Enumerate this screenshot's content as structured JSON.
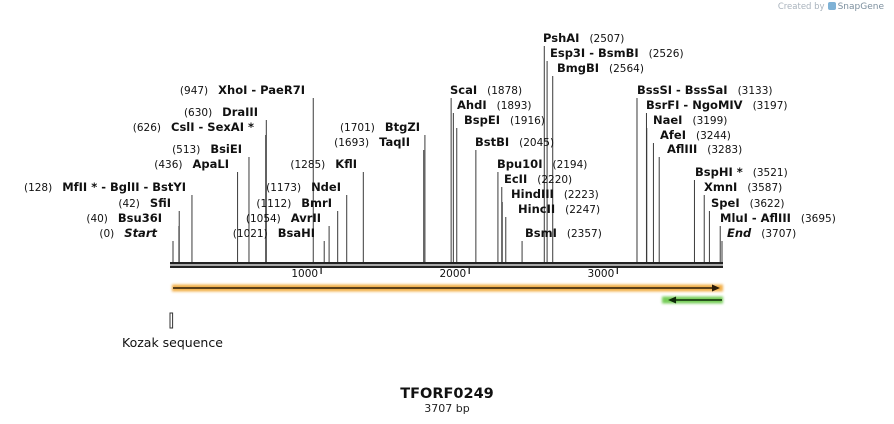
{
  "watermark": {
    "prefix": "Created by",
    "brand": "SnapGene"
  },
  "title": "TFORF0249",
  "length_label": "3707 bp",
  "sequence_length": 3707,
  "axis_ticks": [
    {
      "bp": 1000,
      "label": "1000"
    },
    {
      "bp": 2000,
      "label": "2000"
    },
    {
      "bp": 3000,
      "label": "3000"
    }
  ],
  "features": [
    {
      "name": "orf",
      "type": "arrow",
      "start": 1,
      "end": 3707,
      "direction": "forward",
      "color": "#f0a22a"
    },
    {
      "name": "marker",
      "type": "arrow",
      "start": 3310,
      "end": 3707,
      "direction": "reverse",
      "color": "#5ec43a"
    },
    {
      "name": "kozak",
      "type": "box",
      "start": 1,
      "end": 10,
      "label": "Kozak sequence"
    }
  ],
  "left_labels": [
    {
      "name": "Start",
      "pos": "(0)",
      "bp": 0,
      "italic": true
    },
    {
      "name": "Bsu36I",
      "pos": "(40)",
      "bp": 40
    },
    {
      "name": "SfiI",
      "pos": "(42)",
      "bp": 42
    },
    {
      "name": "MfII * - BglII - BstYI",
      "pos": "(128)",
      "bp": 128
    },
    {
      "name": "ApaLI",
      "pos": "(436)",
      "bp": 436
    },
    {
      "name": "BsiEI",
      "pos": "(513)",
      "bp": 513
    },
    {
      "name": "CslI - SexAI *",
      "pos": "(626)",
      "bp": 626
    },
    {
      "name": "DraIII",
      "pos": "(630)",
      "bp": 630
    },
    {
      "name": "XhoI - PaeR7I",
      "pos": "(947)",
      "bp": 947
    },
    {
      "name": "BsaHI",
      "pos": "(1021)",
      "bp": 1021
    },
    {
      "name": "AvrII",
      "pos": "(1054)",
      "bp": 1054
    },
    {
      "name": "BmrI",
      "pos": "(1112)",
      "bp": 1112
    },
    {
      "name": "NdeI",
      "pos": "(1173)",
      "bp": 1173
    },
    {
      "name": "KflI",
      "pos": "(1285)",
      "bp": 1285
    },
    {
      "name": "TaqII",
      "pos": "(1693)",
      "bp": 1693
    },
    {
      "name": "BtgZI",
      "pos": "(1701)",
      "bp": 1701
    }
  ],
  "right_labels": [
    {
      "name": "ScaI",
      "pos": "(1878)",
      "bp": 1878
    },
    {
      "name": "AhdI",
      "pos": "(1893)",
      "bp": 1893
    },
    {
      "name": "BspEI",
      "pos": "(1916)",
      "bp": 1916
    },
    {
      "name": "BstBI",
      "pos": "(2045)",
      "bp": 2045
    },
    {
      "name": "Bpu10I",
      "pos": "(2194)",
      "bp": 2194
    },
    {
      "name": "EcII",
      "pos": "(2220)",
      "bp": 2220
    },
    {
      "name": "HindIII",
      "pos": "(2223)",
      "bp": 2223
    },
    {
      "name": "HincII",
      "pos": "(2247)",
      "bp": 2247
    },
    {
      "name": "BsmI",
      "pos": "(2357)",
      "bp": 2357
    },
    {
      "name": "PshAI",
      "pos": "(2507)",
      "bp": 2507
    },
    {
      "name": "Esp3I - BsmBI",
      "pos": "(2526)",
      "bp": 2526
    },
    {
      "name": "BmgBI",
      "pos": "(2564)",
      "bp": 2564
    },
    {
      "name": "BssSI - BssSaI",
      "pos": "(3133)",
      "bp": 3133
    },
    {
      "name": "BsrFI - NgoMIV",
      "pos": "(3197)",
      "bp": 3197
    },
    {
      "name": "NaeI",
      "pos": "(3199)",
      "bp": 3199
    },
    {
      "name": "AfeI",
      "pos": "(3244)",
      "bp": 3244
    },
    {
      "name": "AflIII",
      "pos": "(3283)",
      "bp": 3283
    },
    {
      "name": "BspHI *",
      "pos": "(3521)",
      "bp": 3521
    },
    {
      "name": "XmnI",
      "pos": "(3587)",
      "bp": 3587
    },
    {
      "name": "SpeI",
      "pos": "(3622)",
      "bp": 3622
    },
    {
      "name": "MluI - AflIII",
      "pos": "(3695)",
      "bp": 3695
    },
    {
      "name": "End",
      "pos": "(3707)",
      "bp": 3707,
      "italic": true
    }
  ]
}
